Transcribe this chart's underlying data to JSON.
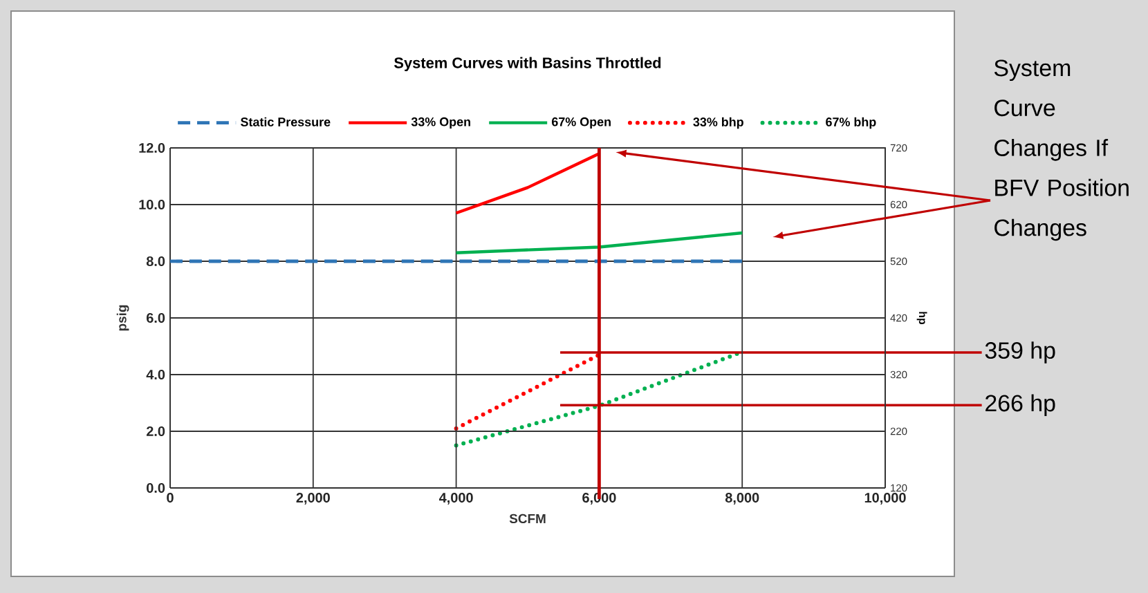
{
  "chart_data": {
    "type": "line",
    "title": "System Curves with Basins Throttled",
    "xlabel": "SCFM",
    "ylabel": "psig",
    "y2label": "hp",
    "xlim": [
      0,
      10000
    ],
    "xticks": [
      {
        "value": 0,
        "label": "0"
      },
      {
        "value": 2000,
        "label": "2,000"
      },
      {
        "value": 4000,
        "label": "4,000"
      },
      {
        "value": 6000,
        "label": "6,000"
      },
      {
        "value": 8000,
        "label": "8,000"
      },
      {
        "value": 10000,
        "label": "10,000"
      }
    ],
    "ylim": [
      0,
      12
    ],
    "yticks": [
      {
        "value": 0,
        "label": "0.0"
      },
      {
        "value": 2,
        "label": "2.0"
      },
      {
        "value": 4,
        "label": "4.0"
      },
      {
        "value": 6,
        "label": "6.0"
      },
      {
        "value": 8,
        "label": "8.0"
      },
      {
        "value": 10,
        "label": "10.0"
      },
      {
        "value": 12,
        "label": "12.0"
      }
    ],
    "y2lim": [
      120,
      720
    ],
    "y2ticks": [
      120,
      220,
      320,
      420,
      520,
      620,
      720
    ],
    "grid": true,
    "legend": "top",
    "series": [
      {
        "name": "Static Pressure",
        "color": "#2e75b6",
        "line_style": "dashed",
        "x": [
          0,
          2000,
          4000,
          6000,
          8000
        ],
        "values": [
          8,
          8,
          8,
          8,
          8
        ]
      },
      {
        "name": "33% Open",
        "color": "#ff0000",
        "line_style": "solid",
        "x": [
          4000,
          5000,
          6000
        ],
        "values": [
          9.7,
          10.6,
          11.8
        ]
      },
      {
        "name": "67% Open",
        "color": "#00b050",
        "line_style": "solid",
        "x": [
          4000,
          6000,
          8000
        ],
        "values": [
          8.3,
          8.5,
          9.0
        ]
      },
      {
        "name": "33% bhp",
        "color": "#ff0000",
        "line_style": "dotted",
        "axis": "y2",
        "x": [
          4000,
          5000,
          6000
        ],
        "values": [
          225,
          290,
          355
        ]
      },
      {
        "name": "67% bhp",
        "color": "#00b050",
        "line_style": "dotted",
        "axis": "y2",
        "x": [
          4000,
          6000,
          8000
        ],
        "values": [
          195,
          265,
          360
        ]
      }
    ],
    "ref_lines": [
      {
        "axis": "x",
        "value": 6000,
        "color": "#c00000"
      },
      {
        "axis": "y2",
        "value": 359,
        "label": "359 hp",
        "color": "#c00000"
      },
      {
        "axis": "y2",
        "value": 266,
        "label": "266 hp",
        "color": "#c00000"
      }
    ],
    "annotations": [
      "System Curve Changes If BFV Position Changes"
    ]
  }
}
